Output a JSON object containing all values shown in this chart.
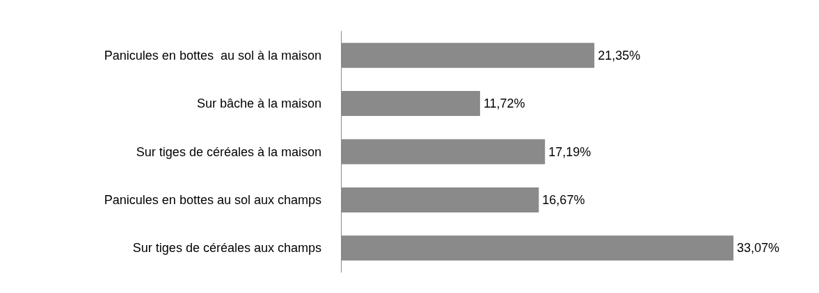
{
  "chart_data": {
    "type": "bar",
    "orientation": "horizontal",
    "categories": [
      "Panicules en bottes  au sol à la maison",
      "Sur bâche à la maison",
      "Sur tiges de céréales à la maison",
      "Panicules en bottes au sol aux champs",
      "Sur tiges de céréales aux champs"
    ],
    "values": [
      21.35,
      11.72,
      17.19,
      16.67,
      33.07
    ],
    "value_labels": [
      "21,35%",
      "11,72%",
      "17,19%",
      "16,67%",
      "33,07%"
    ],
    "color": "#8a8a8a"
  }
}
